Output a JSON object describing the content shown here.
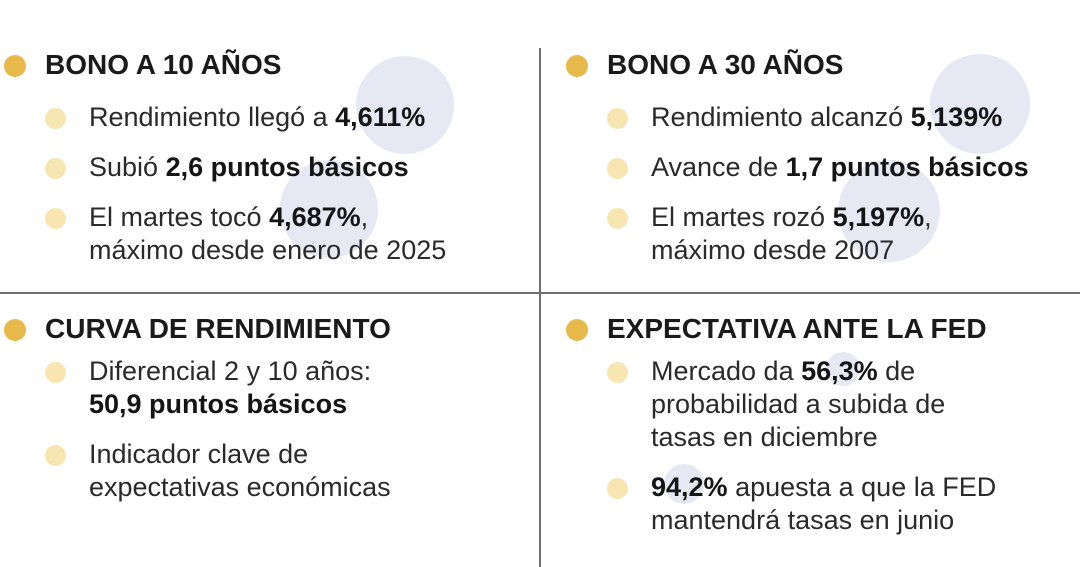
{
  "colors": {
    "heading_dot": "#e6b94a",
    "bullet_dot": "#f7e6b2",
    "bubble": "#e6e9f4",
    "divider": "#6f6f6f",
    "text": "#2a2a2a"
  },
  "bono10": {
    "title": "BONO A 10 AÑOS",
    "i1_pre": "Rendimiento llegó a ",
    "i1_val": "4,611%",
    "i2_pre": "Subió ",
    "i2_val": "2,6 puntos básicos",
    "i3_pre": "El martes tocó ",
    "i3_val": "4,687%",
    "i3_post": ",",
    "i3_line2": "máximo desde enero de 2025"
  },
  "bono30": {
    "title": "BONO A 30 AÑOS",
    "i1_pre": "Rendimiento alcanzó ",
    "i1_val": "5,139%",
    "i2_pre": "Avance de ",
    "i2_val": "1,7 puntos básicos",
    "i3_pre": "El martes rozó ",
    "i3_val": "5,197%",
    "i3_post": ",",
    "i3_line2": "máximo desde 2007"
  },
  "curva": {
    "title": "CURVA DE RENDIMIENTO",
    "i1_line1": "Diferencial 2 y 10 años:",
    "i1_val": "50,9 puntos básicos",
    "i2_line1": "Indicador clave de",
    "i2_line2": "expectativas económicas"
  },
  "fed": {
    "title": "EXPECTATIVA ANTE LA FED",
    "i1_pre": "Mercado da ",
    "i1_val": "56,3%",
    "i1_post": " de",
    "i1_line2": "probabilidad a subida de",
    "i1_line3": "tasas en diciembre",
    "i2_val": "94,2%",
    "i2_post": " apuesta a que la FED",
    "i2_line2": "mantendrá tasas en junio"
  }
}
